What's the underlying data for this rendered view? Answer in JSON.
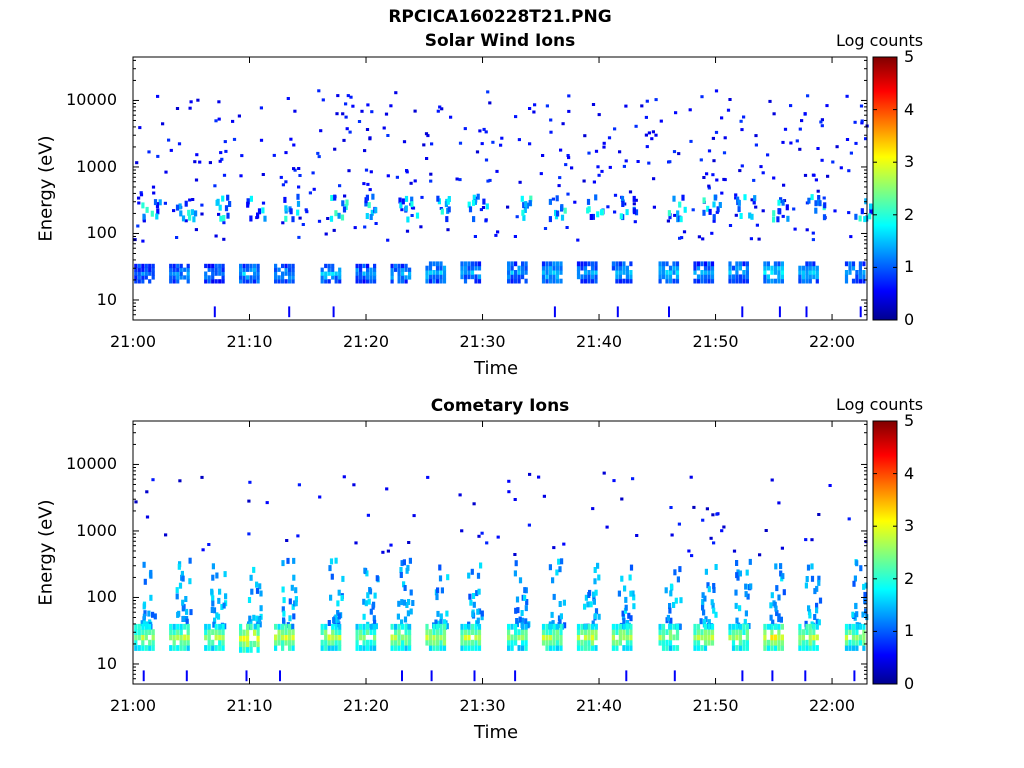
{
  "figure": {
    "title": "RPCICA160228T21.PNG"
  },
  "chart_data": [
    {
      "type": "heatmap",
      "title": "Solar Wind Ions",
      "xlabel": "Time",
      "ylabel": "Energy (eV)",
      "y_scale": "log",
      "ylim": [
        5,
        45000
      ],
      "xlim": [
        "21:00",
        "22:03"
      ],
      "x_ticks": [
        "21:00",
        "21:10",
        "21:20",
        "21:30",
        "21:40",
        "21:50",
        "22:00"
      ],
      "y_ticks": [
        "10",
        "100",
        "1000",
        "10000"
      ],
      "colorbar": {
        "label": "Log counts",
        "range": [
          0,
          5
        ],
        "ticks": [
          "0",
          "1",
          "2",
          "3",
          "4",
          "5"
        ],
        "colormap": "jet"
      },
      "bursts": [
        {
          "t": "21:01",
          "e_low": 18,
          "e_high": 35,
          "peak": 1.2
        },
        {
          "t": "21:04",
          "e_low": 18,
          "e_high": 35,
          "peak": 1.3
        },
        {
          "t": "21:07",
          "e_low": 18,
          "e_high": 35,
          "peak": 1.2
        },
        {
          "t": "21:10",
          "e_low": 18,
          "e_high": 35,
          "peak": 1.5
        },
        {
          "t": "21:13",
          "e_low": 18,
          "e_high": 35,
          "peak": 1.4
        },
        {
          "t": "21:17",
          "e_low": 18,
          "e_high": 35,
          "peak": 1.5
        },
        {
          "t": "21:20",
          "e_low": 18,
          "e_high": 35,
          "peak": 1.3
        },
        {
          "t": "21:23",
          "e_low": 18,
          "e_high": 35,
          "peak": 1.4
        },
        {
          "t": "21:26",
          "e_low": 18,
          "e_high": 38,
          "peak": 1.5
        },
        {
          "t": "21:29",
          "e_low": 18,
          "e_high": 38,
          "peak": 1.4
        },
        {
          "t": "21:33",
          "e_low": 18,
          "e_high": 38,
          "peak": 1.4
        },
        {
          "t": "21:36",
          "e_low": 18,
          "e_high": 38,
          "peak": 1.5
        },
        {
          "t": "21:39",
          "e_low": 18,
          "e_high": 38,
          "peak": 1.3
        },
        {
          "t": "21:42",
          "e_low": 18,
          "e_high": 38,
          "peak": 1.4
        },
        {
          "t": "21:46",
          "e_low": 18,
          "e_high": 38,
          "peak": 1.5
        },
        {
          "t": "21:49",
          "e_low": 18,
          "e_high": 38,
          "peak": 1.3
        },
        {
          "t": "21:52",
          "e_low": 18,
          "e_high": 38,
          "peak": 1.4
        },
        {
          "t": "21:55",
          "e_low": 18,
          "e_high": 38,
          "peak": 1.6
        },
        {
          "t": "21:58",
          "e_low": 18,
          "e_high": 38,
          "peak": 1.5
        },
        {
          "t": "22:02",
          "e_low": 18,
          "e_high": 38,
          "peak": 1.4
        }
      ],
      "mid_band": {
        "e_low": 180,
        "e_high": 400,
        "peak": 1.6
      },
      "background_noise": {
        "e_low": 80,
        "e_high": 15000,
        "level": 0.4
      }
    },
    {
      "type": "heatmap",
      "title": "Cometary Ions",
      "xlabel": "Time",
      "ylabel": "Energy (eV)",
      "y_scale": "log",
      "ylim": [
        5,
        45000
      ],
      "xlim": [
        "21:00",
        "22:03"
      ],
      "x_ticks": [
        "21:00",
        "21:10",
        "21:20",
        "21:30",
        "21:40",
        "21:50",
        "22:00"
      ],
      "y_ticks": [
        "10",
        "100",
        "1000",
        "10000"
      ],
      "colorbar": {
        "label": "Log counts",
        "range": [
          0,
          5
        ],
        "ticks": [
          "0",
          "1",
          "2",
          "3",
          "4",
          "5"
        ],
        "colormap": "jet"
      },
      "bursts": [
        {
          "t": "21:01",
          "e_low": 16,
          "e_high": 40,
          "peak": 2.6
        },
        {
          "t": "21:04",
          "e_low": 16,
          "e_high": 40,
          "peak": 2.7
        },
        {
          "t": "21:07",
          "e_low": 16,
          "e_high": 40,
          "peak": 2.6
        },
        {
          "t": "21:10",
          "e_low": 15,
          "e_high": 40,
          "peak": 3.0
        },
        {
          "t": "21:13",
          "e_low": 16,
          "e_high": 40,
          "peak": 2.8
        },
        {
          "t": "21:17",
          "e_low": 16,
          "e_high": 40,
          "peak": 2.7
        },
        {
          "t": "21:20",
          "e_low": 16,
          "e_high": 40,
          "peak": 2.5
        },
        {
          "t": "21:23",
          "e_low": 16,
          "e_high": 40,
          "peak": 2.6
        },
        {
          "t": "21:26",
          "e_low": 16,
          "e_high": 40,
          "peak": 2.8
        },
        {
          "t": "21:29",
          "e_low": 16,
          "e_high": 40,
          "peak": 2.7
        },
        {
          "t": "21:33",
          "e_low": 16,
          "e_high": 40,
          "peak": 2.5
        },
        {
          "t": "21:36",
          "e_low": 16,
          "e_high": 40,
          "peak": 2.7
        },
        {
          "t": "21:39",
          "e_low": 16,
          "e_high": 40,
          "peak": 2.8
        },
        {
          "t": "21:42",
          "e_low": 16,
          "e_high": 40,
          "peak": 2.7
        },
        {
          "t": "21:46",
          "e_low": 16,
          "e_high": 40,
          "peak": 2.6
        },
        {
          "t": "21:49",
          "e_low": 16,
          "e_high": 40,
          "peak": 2.7
        },
        {
          "t": "21:52",
          "e_low": 16,
          "e_high": 40,
          "peak": 2.6
        },
        {
          "t": "21:55",
          "e_low": 16,
          "e_high": 40,
          "peak": 3.0
        },
        {
          "t": "21:58",
          "e_low": 16,
          "e_high": 40,
          "peak": 2.8
        },
        {
          "t": "22:02",
          "e_low": 16,
          "e_high": 40,
          "peak": 2.6
        }
      ],
      "plumes": {
        "e_low": 40,
        "e_high": 400,
        "level": 1.0
      },
      "background_noise": {
        "e_low": 400,
        "e_high": 8000,
        "level": 0.3
      }
    }
  ]
}
